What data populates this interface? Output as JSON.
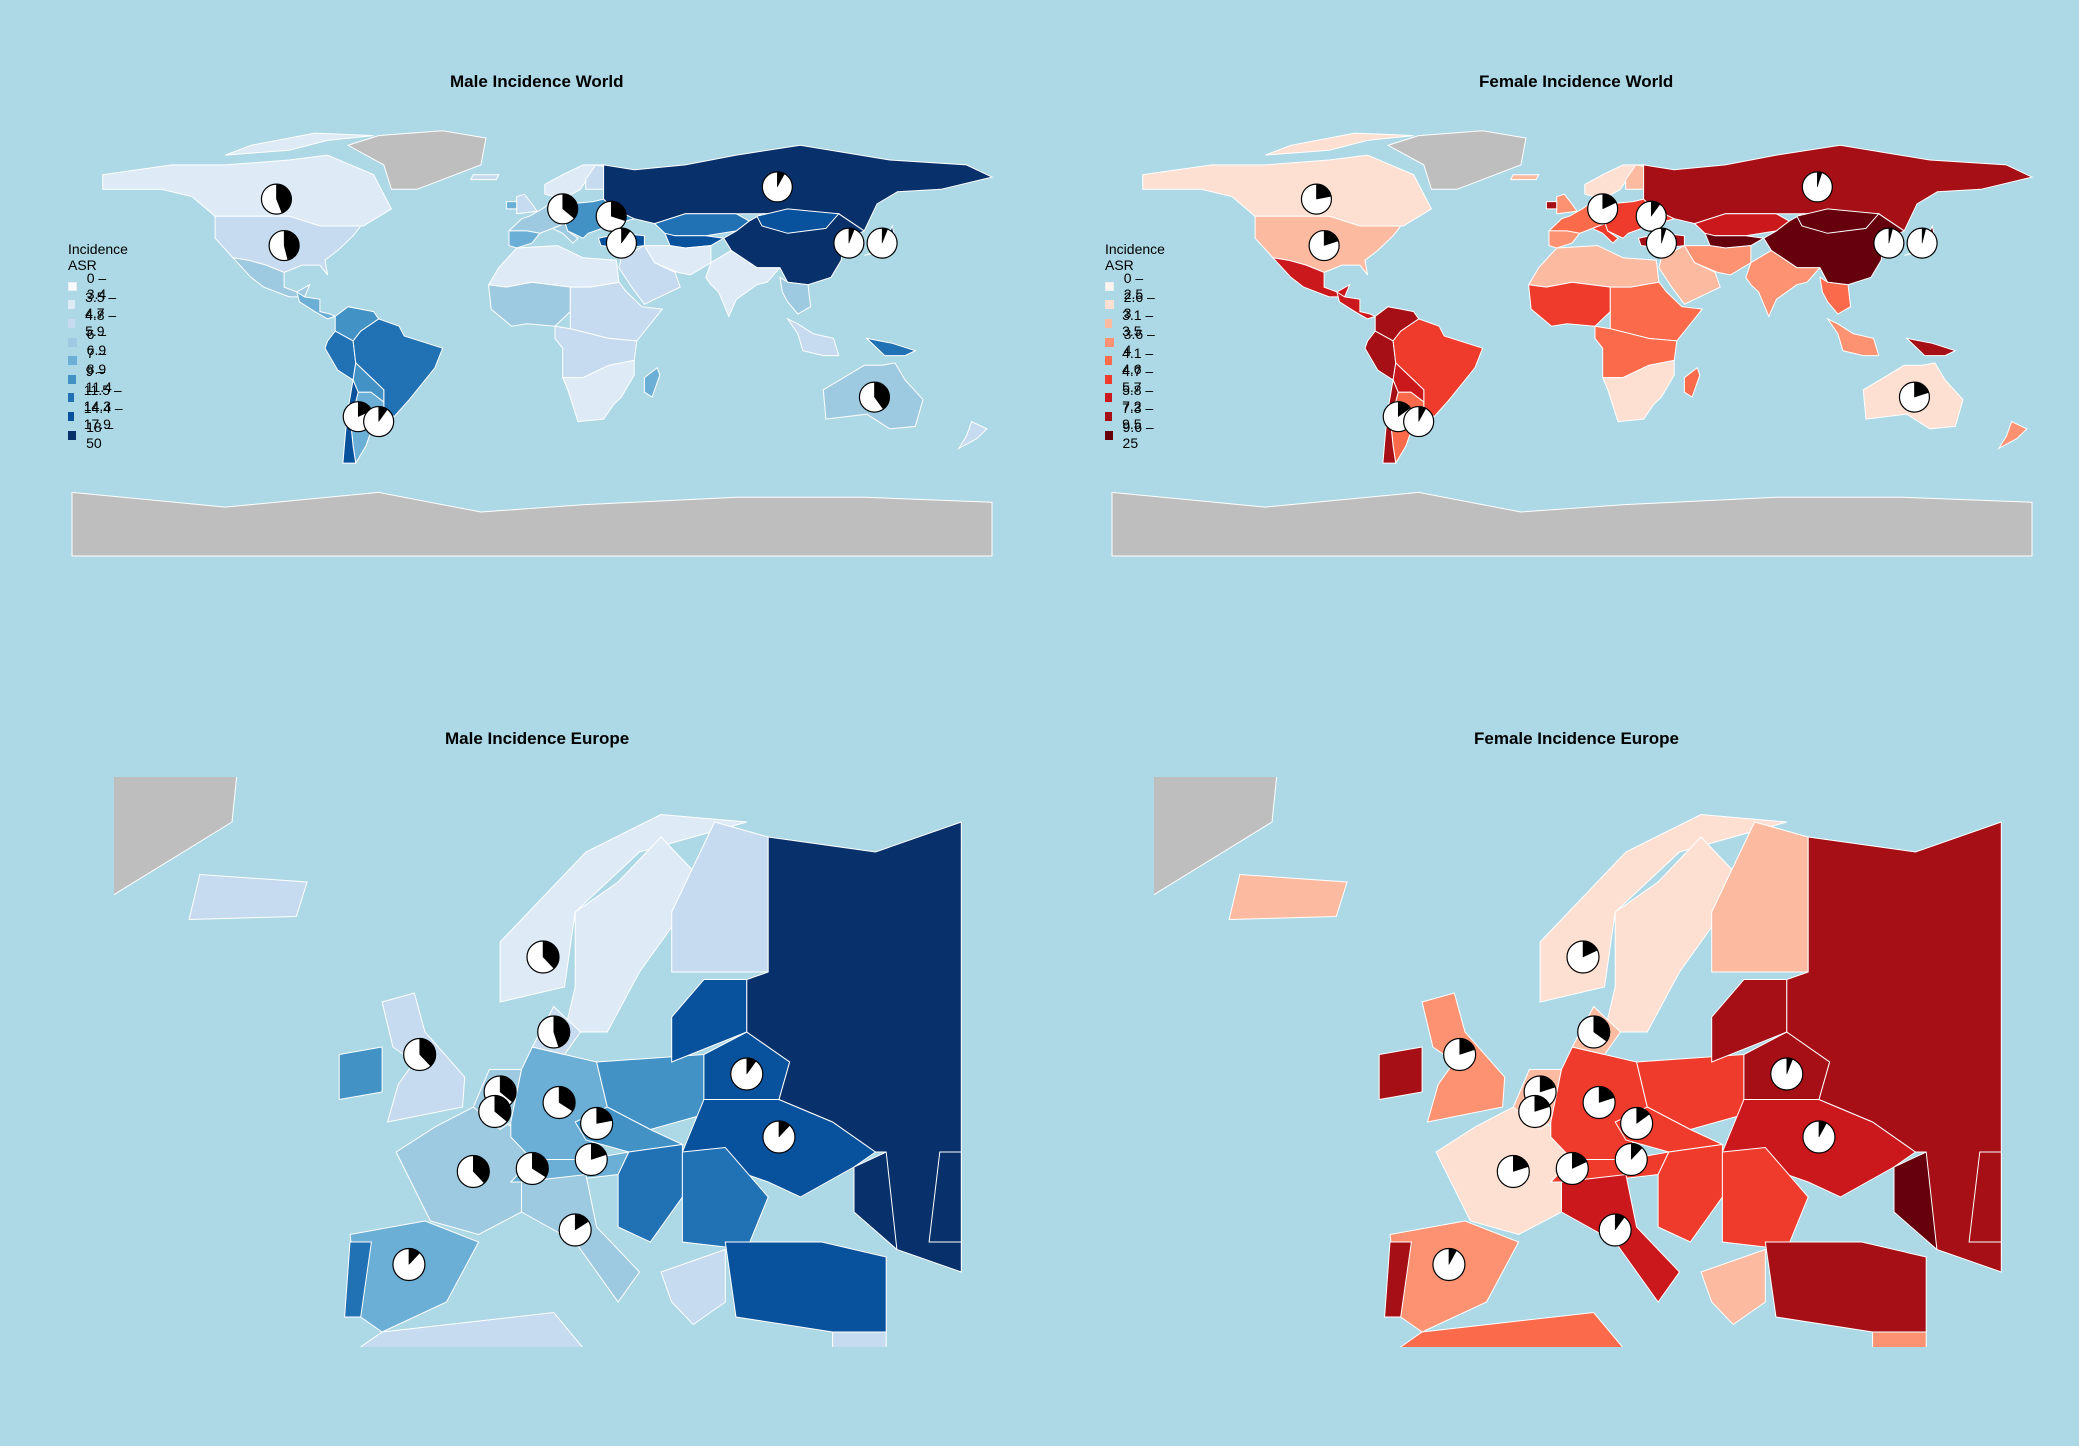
{
  "colors": {
    "background": "#add8e6",
    "unknown": "#bebebe",
    "border": "#ffffff",
    "blues": [
      "#f7fbff",
      "#deebf7",
      "#c6dbef",
      "#9ecae1",
      "#6baed6",
      "#4292c6",
      "#2171b5",
      "#08519c",
      "#08306b"
    ],
    "reds": [
      "#fff5f0",
      "#fee0d2",
      "#fcbba1",
      "#fc9272",
      "#fb6a4a",
      "#ef3b2c",
      "#cb181d",
      "#a50f15",
      "#67000d"
    ]
  },
  "panels": {
    "male_world": {
      "title": "Male Incidence World"
    },
    "female_world": {
      "title": "Female Incidence World"
    },
    "male_europe": {
      "title": "Male Incidence Europe"
    },
    "female_europe": {
      "title": "Female Incidence Europe"
    }
  },
  "legends": {
    "male": {
      "title": "Incidence ASR",
      "items": [
        "0 – 3.4",
        "3.5 – 4.7",
        "4.8 – 5.9",
        "6 – 6.9",
        "7 – 8.9",
        "9 – 11.4",
        "11.5 – 14.3",
        "14.4 – 17.9",
        "18 – 50"
      ]
    },
    "female": {
      "title": "Incidence ASR",
      "items": [
        "0 – 2.5",
        "2.6 – 3",
        "3.1 – 3.5",
        "3.6 – 4",
        "4.1 – 4.6",
        "4.7 – 5.7",
        "5.8 – 7.2",
        "7.3 – 9.5",
        "9.6 – 25"
      ]
    }
  },
  "pie_charts": {
    "male_world": [
      {
        "lon": -100,
        "lat": 56,
        "fraction": 0.44
      },
      {
        "lon": -97,
        "lat": 37,
        "fraction": 0.46
      },
      {
        "lon": 12,
        "lat": 52,
        "fraction": 0.36
      },
      {
        "lon": 31,
        "lat": 49,
        "fraction": 0.3
      },
      {
        "lon": 35,
        "lat": 38,
        "fraction": 0.1
      },
      {
        "lon": 96,
        "lat": 61,
        "fraction": 0.08
      },
      {
        "lon": 124,
        "lat": 38,
        "fraction": 0.06
      },
      {
        "lon": 137,
        "lat": 38,
        "fraction": 0.06
      },
      {
        "lon": -68,
        "lat": -33,
        "fraction": 0.18
      },
      {
        "lon": -60,
        "lat": -35,
        "fraction": 0.1
      },
      {
        "lon": 134,
        "lat": -25,
        "fraction": 0.4
      }
    ],
    "female_world": [
      {
        "lon": -100,
        "lat": 56,
        "fraction": 0.22
      },
      {
        "lon": -97,
        "lat": 37,
        "fraction": 0.2
      },
      {
        "lon": 12,
        "lat": 52,
        "fraction": 0.18
      },
      {
        "lon": 31,
        "lat": 49,
        "fraction": 0.1
      },
      {
        "lon": 35,
        "lat": 38,
        "fraction": 0.05
      },
      {
        "lon": 96,
        "lat": 61,
        "fraction": 0.05
      },
      {
        "lon": 124,
        "lat": 38,
        "fraction": 0.04
      },
      {
        "lon": 137,
        "lat": 38,
        "fraction": 0.04
      },
      {
        "lon": -68,
        "lat": -33,
        "fraction": 0.15
      },
      {
        "lon": -60,
        "lat": -35,
        "fraction": 0.08
      },
      {
        "lon": 134,
        "lat": -25,
        "fraction": 0.2
      }
    ],
    "male_europe": [
      {
        "lon": 9,
        "lat": 61,
        "fraction": 0.38
      },
      {
        "lon": 10,
        "lat": 56,
        "fraction": 0.45
      },
      {
        "lon": -2.5,
        "lat": 54.5,
        "fraction": 0.38
      },
      {
        "lon": 5,
        "lat": 52,
        "fraction": 0.36
      },
      {
        "lon": 4.5,
        "lat": 50.7,
        "fraction": 0.36
      },
      {
        "lon": 10.5,
        "lat": 51.3,
        "fraction": 0.34
      },
      {
        "lon": 14,
        "lat": 49.9,
        "fraction": 0.22
      },
      {
        "lon": 13.5,
        "lat": 47.5,
        "fraction": 0.2
      },
      {
        "lon": 2.5,
        "lat": 46.7,
        "fraction": 0.38
      },
      {
        "lon": 8,
        "lat": 46.9,
        "fraction": 0.34
      },
      {
        "lon": 28,
        "lat": 53.2,
        "fraction": 0.1
      },
      {
        "lon": 31,
        "lat": 49,
        "fraction": 0.12
      },
      {
        "lon": 12,
        "lat": 42.8,
        "fraction": 0.16
      },
      {
        "lon": -3.5,
        "lat": 40.5,
        "fraction": 0.12
      }
    ],
    "female_europe": [
      {
        "lon": 9,
        "lat": 61,
        "fraction": 0.18
      },
      {
        "lon": 10,
        "lat": 56,
        "fraction": 0.35
      },
      {
        "lon": -2.5,
        "lat": 54.5,
        "fraction": 0.2
      },
      {
        "lon": 5,
        "lat": 52,
        "fraction": 0.2
      },
      {
        "lon": 4.5,
        "lat": 50.7,
        "fraction": 0.2
      },
      {
        "lon": 10.5,
        "lat": 51.3,
        "fraction": 0.2
      },
      {
        "lon": 14,
        "lat": 49.9,
        "fraction": 0.15
      },
      {
        "lon": 13.5,
        "lat": 47.5,
        "fraction": 0.12
      },
      {
        "lon": 2.5,
        "lat": 46.7,
        "fraction": 0.2
      },
      {
        "lon": 8,
        "lat": 46.9,
        "fraction": 0.18
      },
      {
        "lon": 28,
        "lat": 53.2,
        "fraction": 0.06
      },
      {
        "lon": 31,
        "lat": 49,
        "fraction": 0.08
      },
      {
        "lon": 12,
        "lat": 42.8,
        "fraction": 0.1
      },
      {
        "lon": -3.5,
        "lat": 40.5,
        "fraction": 0.08
      }
    ]
  }
}
